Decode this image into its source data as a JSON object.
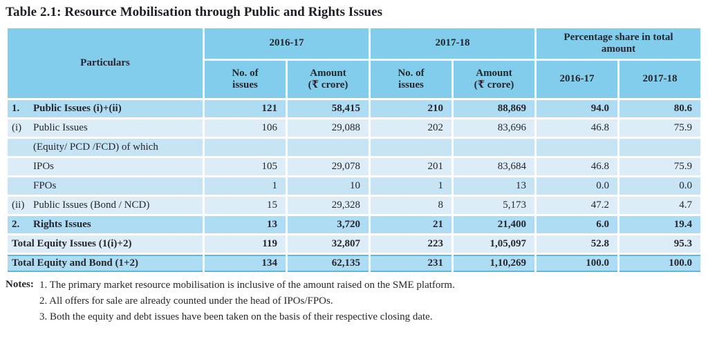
{
  "title": "Table 2.1: Resource Mobilisation through Public and Rights Issues",
  "colors": {
    "header_bg": "#82CDEB",
    "row_medium": "#AEDCF2",
    "row_light": "#DCEDF8",
    "row_alt": "#C6E4F4",
    "rule_color": "#5FB7E0",
    "text_color": "#26262E",
    "title_color": "#1E1E26"
  },
  "table": {
    "header": {
      "particulars": "Particulars",
      "group_2016_17": "2016-17",
      "group_2017_18": "2017-18",
      "group_pct": "Percentage share in total\namount",
      "sub": [
        "No. of\nissues",
        "Amount\n(₹ crore)",
        "No. of\nissues",
        "Amount\n(₹ crore)",
        "2016-17",
        "2017-18"
      ]
    },
    "rows": [
      {
        "num": "1.",
        "label": "Public Issues  (i)+(ii)",
        "values": [
          "121",
          "58,415",
          "210",
          "88,869",
          "94.0",
          "80.6"
        ]
      },
      {
        "num": "(i)",
        "label": "Public Issues",
        "values": [
          "106",
          "29,088",
          "202",
          "83,696",
          "46.8",
          "75.9"
        ]
      },
      {
        "num": "",
        "label": "(Equity/ PCD /FCD) of which",
        "values": [
          "",
          "",
          "",
          "",
          "",
          ""
        ]
      },
      {
        "num": "",
        "label": "IPOs",
        "values": [
          "105",
          "29,078",
          "201",
          "83,684",
          "46.8",
          "75.9"
        ]
      },
      {
        "num": "",
        "label": "FPOs",
        "values": [
          "1",
          "10",
          "1",
          "13",
          "0.0",
          "0.0"
        ]
      },
      {
        "num": "(ii)",
        "label": "Public Issues (Bond / NCD)",
        "values": [
          "15",
          "29,328",
          "8",
          "5,173",
          "47.2",
          "4.7"
        ]
      },
      {
        "num": "2.",
        "label": "Rights Issues",
        "values": [
          "13",
          "3,720",
          "21",
          "21,400",
          "6.0",
          "19.4"
        ]
      },
      {
        "num": "",
        "label": "Total Equity Issues (1(i)+2)",
        "values": [
          "119",
          "32,807",
          "223",
          "1,05,097",
          "52.8",
          "95.3"
        ]
      },
      {
        "num": "",
        "label": "Total Equity and Bond (1+2)",
        "values": [
          "134",
          "62,135",
          "231",
          "1,10,269",
          "100.0",
          "100.0"
        ]
      }
    ]
  },
  "notes": {
    "label": "Notes:",
    "items": [
      "1. The primary market resource mobilisation is inclusive of the amount raised on the SME platform.",
      "2. All offers for sale are already counted under the head of IPOs/FPOs.",
      "3. Both the equity and debt issues have been taken on the basis of their respective closing date."
    ]
  }
}
